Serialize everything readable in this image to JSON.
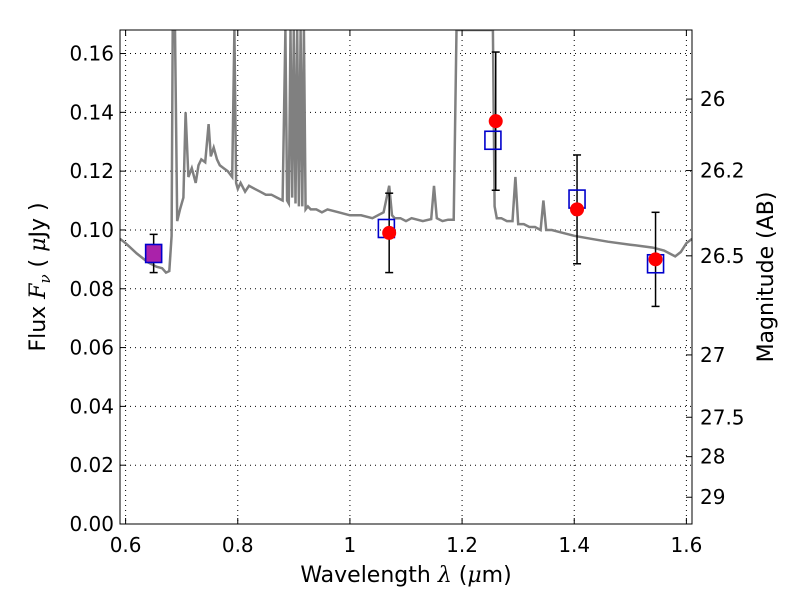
{
  "chart_data": {
    "type": "scatter",
    "xlabel": "Wavelength  λ (μm)",
    "ylabel": "Flux  Fν  ( μJy )",
    "y2label": "Magnitude (AB)",
    "xlim": [
      0.59,
      1.61
    ],
    "ylim": [
      0.0,
      0.168
    ],
    "grid": true,
    "xticks": [
      0.6,
      0.8,
      1.0,
      1.2,
      1.4,
      1.6
    ],
    "xtick_labels": [
      "0.6",
      "0.8",
      "1",
      "1.2",
      "1.4",
      "1.6"
    ],
    "yticks": [
      0.0,
      0.02,
      0.04,
      0.06,
      0.08,
      0.1,
      0.12,
      0.14,
      0.16
    ],
    "ytick_labels": [
      "0.00",
      "0.02",
      "0.04",
      "0.06",
      "0.08",
      "0.10",
      "0.12",
      "0.14",
      "0.16"
    ],
    "y2ticks": [
      {
        "label": "26",
        "flux": 0.1445
      },
      {
        "label": "26.2",
        "flux": 0.1202
      },
      {
        "label": "26.5",
        "flux": 0.0912
      },
      {
        "label": "27",
        "flux": 0.0575
      },
      {
        "label": "27.5",
        "flux": 0.0363
      },
      {
        "label": "28",
        "flux": 0.0229
      },
      {
        "label": "29",
        "flux": 0.0091
      }
    ],
    "colors": {
      "model": "#808080",
      "observed": "#ff0000",
      "model_photometry": "#0000cc",
      "overlap": "#aa22aa",
      "errorbar": "#000000"
    },
    "series": [
      {
        "kind": "observed",
        "x": [
          0.65,
          1.07,
          1.26,
          1.405,
          1.545
        ],
        "y": [
          0.092,
          0.099,
          0.137,
          0.107,
          0.09
        ],
        "yerr": [
          0.0065,
          0.0135,
          0.0235,
          0.0185,
          0.016
        ]
      },
      {
        "kind": "model_photometry",
        "x": [
          0.65,
          1.065,
          1.255,
          1.405,
          1.545
        ],
        "y": [
          0.092,
          0.1005,
          0.1305,
          0.1105,
          0.0885
        ]
      },
      {
        "kind": "model",
        "x": [
          0.59,
          0.6,
          0.62,
          0.64,
          0.655,
          0.665,
          0.672,
          0.678,
          0.682,
          0.684,
          0.688,
          0.692,
          0.697,
          0.703,
          0.707,
          0.712,
          0.718,
          0.725,
          0.73,
          0.735,
          0.742,
          0.748,
          0.752,
          0.757,
          0.763,
          0.768,
          0.775,
          0.782,
          0.79,
          0.794,
          0.797,
          0.8,
          0.805,
          0.813,
          0.82,
          0.83,
          0.84,
          0.85,
          0.86,
          0.87,
          0.88,
          0.885,
          0.888,
          0.891,
          0.894,
          0.897,
          0.9,
          0.903,
          0.906,
          0.909,
          0.912,
          0.915,
          0.918,
          0.921,
          0.925,
          0.93,
          0.94,
          0.95,
          0.96,
          0.98,
          1.0,
          1.02,
          1.04,
          1.06,
          1.07,
          1.075,
          1.08,
          1.09,
          1.1,
          1.11,
          1.13,
          1.145,
          1.15,
          1.155,
          1.165,
          1.175,
          1.185,
          1.19,
          1.2,
          1.21,
          1.22,
          1.24,
          1.255,
          1.258,
          1.262,
          1.27,
          1.28,
          1.29,
          1.295,
          1.3,
          1.31,
          1.32,
          1.33,
          1.34,
          1.345,
          1.35,
          1.36,
          1.38,
          1.4,
          1.43,
          1.46,
          1.5,
          1.52,
          1.54,
          1.56,
          1.58,
          1.59,
          1.6,
          1.61
        ],
        "y": [
          0.097,
          0.0955,
          0.092,
          0.089,
          0.0875,
          0.087,
          0.0855,
          0.086,
          0.098,
          0.168,
          0.168,
          0.103,
          0.107,
          0.111,
          0.14,
          0.118,
          0.121,
          0.116,
          0.122,
          0.124,
          0.123,
          0.136,
          0.125,
          0.128,
          0.124,
          0.122,
          0.121,
          0.12,
          0.118,
          0.168,
          0.116,
          0.114,
          0.116,
          0.113,
          0.115,
          0.114,
          0.113,
          0.112,
          0.112,
          0.111,
          0.11,
          0.168,
          0.11,
          0.109,
          0.168,
          0.111,
          0.168,
          0.109,
          0.168,
          0.108,
          0.168,
          0.108,
          0.168,
          0.107,
          0.108,
          0.107,
          0.107,
          0.106,
          0.107,
          0.106,
          0.105,
          0.105,
          0.104,
          0.106,
          0.115,
          0.105,
          0.104,
          0.104,
          0.103,
          0.104,
          0.103,
          0.1037,
          0.115,
          0.104,
          0.103,
          0.1035,
          0.1035,
          0.168,
          0.168,
          0.168,
          0.168,
          0.168,
          0.168,
          0.108,
          0.104,
          0.104,
          0.103,
          0.103,
          0.118,
          0.102,
          0.102,
          0.101,
          0.101,
          0.1,
          0.11,
          0.1,
          0.1,
          0.099,
          0.098,
          0.097,
          0.096,
          0.095,
          0.0945,
          0.094,
          0.093,
          0.091,
          0.0925,
          0.0955,
          0.097
        ]
      }
    ]
  }
}
